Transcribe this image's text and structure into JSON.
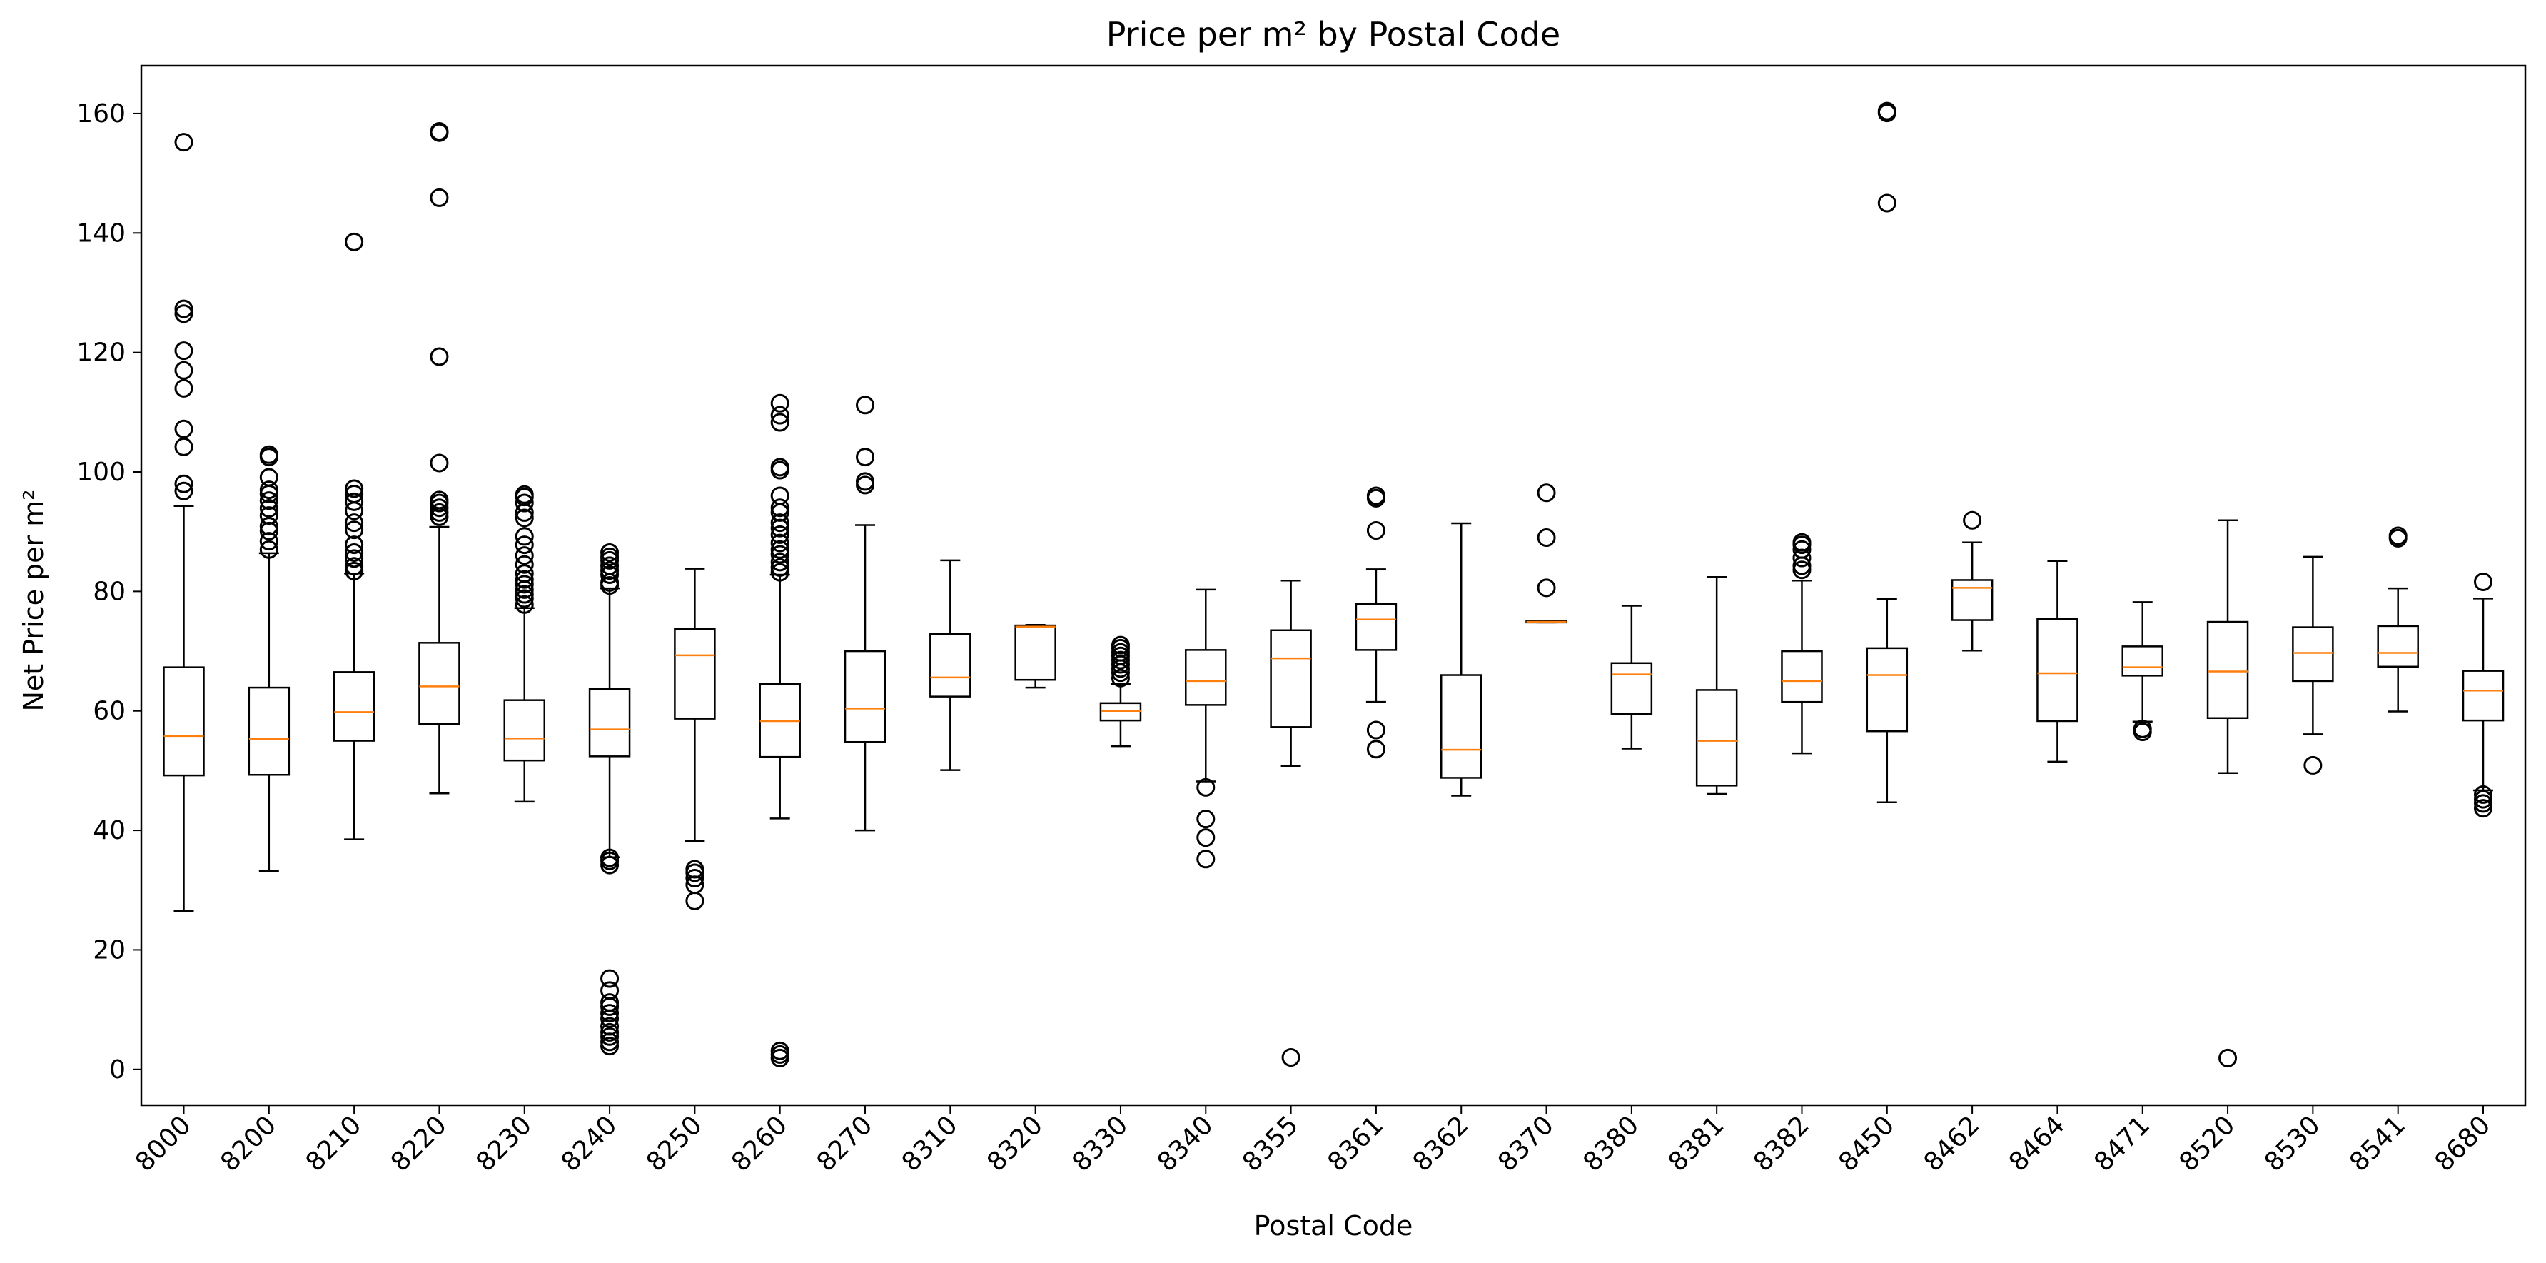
{
  "chart_data": {
    "type": "box",
    "title": "Price per m² by Postal Code",
    "xlabel": "Postal Code",
    "ylabel": "Net Price per m²",
    "ylim": [
      -6,
      168
    ],
    "yticks": [
      0,
      20,
      40,
      60,
      80,
      100,
      120,
      140,
      160
    ],
    "grid": false,
    "colors": {
      "box": "#000000",
      "median": "#ff7f0e"
    },
    "categories": [
      "8000",
      "8200",
      "8210",
      "8220",
      "8230",
      "8240",
      "8250",
      "8260",
      "8270",
      "8310",
      "8320",
      "8330",
      "8340",
      "8355",
      "8361",
      "8362",
      "8370",
      "8380",
      "8381",
      "8382",
      "8450",
      "8462",
      "8464",
      "8471",
      "8520",
      "8530",
      "8541",
      "8680"
    ],
    "boxes": [
      {
        "whisker_low": 26.5,
        "q1": 49.2,
        "median": 55.8,
        "q3": 67.3,
        "whisker_high": 94.3,
        "outliers": [
          96.8,
          98.0,
          104.2,
          107.2,
          114.0,
          117.0,
          120.3,
          126.5,
          127.3,
          155.2
        ]
      },
      {
        "whisker_low": 33.2,
        "q1": 49.3,
        "median": 55.3,
        "q3": 63.9,
        "whisker_high": 86.4,
        "outliers": [
          87.0,
          88.4,
          90.1,
          90.9,
          92.7,
          93.9,
          95.2,
          96.3,
          97.0,
          99.1,
          102.5,
          102.9
        ]
      },
      {
        "whisker_low": 38.5,
        "q1": 55.0,
        "median": 59.8,
        "q3": 66.5,
        "whisker_high": 83.0,
        "outliers": [
          83.4,
          84.2,
          85.5,
          86.5,
          87.8,
          90.3,
          91.5,
          93.5,
          95.0,
          96.3,
          97.2,
          138.5
        ]
      },
      {
        "whisker_low": 46.2,
        "q1": 57.8,
        "median": 64.1,
        "q3": 71.4,
        "whisker_high": 90.8,
        "outliers": [
          92.5,
          93.2,
          94.0,
          94.8,
          95.3,
          101.5,
          119.3,
          145.9,
          156.8,
          157.0
        ]
      },
      {
        "whisker_low": 44.8,
        "q1": 51.7,
        "median": 55.4,
        "q3": 61.8,
        "whisker_high": 77.2,
        "outliers": [
          77.8,
          78.8,
          79.5,
          80.3,
          81.2,
          82.0,
          83.0,
          84.5,
          86.0,
          87.8,
          89.2,
          92.3,
          93.2,
          94.8,
          95.8,
          96.2
        ]
      },
      {
        "whisker_low": 35.5,
        "q1": 52.4,
        "median": 56.9,
        "q3": 63.7,
        "whisker_high": 80.5,
        "outliers": [
          3.9,
          4.6,
          5.5,
          6.2,
          7.2,
          8.5,
          9.4,
          10.5,
          11.2,
          13.2,
          15.2,
          34.2,
          34.9,
          35.4,
          81.0,
          81.5,
          82.8,
          83.5,
          84.3,
          85.2,
          85.8,
          86.5
        ]
      },
      {
        "whisker_low": 38.2,
        "q1": 58.7,
        "median": 69.3,
        "q3": 73.7,
        "whisker_high": 83.8,
        "outliers": [
          28.2,
          30.9,
          32.0,
          32.9,
          33.5
        ]
      },
      {
        "whisker_low": 42.0,
        "q1": 52.3,
        "median": 58.3,
        "q3": 64.5,
        "whisker_high": 82.8,
        "outliers": [
          1.9,
          2.5,
          3.1,
          83.2,
          84.0,
          84.9,
          86.2,
          87.0,
          88.1,
          89.5,
          90.6,
          91.5,
          93.2,
          94.0,
          96.0,
          100.3,
          100.8,
          108.3,
          109.5,
          111.5
        ]
      },
      {
        "whisker_low": 40.0,
        "q1": 54.8,
        "median": 60.4,
        "q3": 70.0,
        "whisker_high": 91.1,
        "outliers": [
          97.8,
          98.4,
          102.5,
          111.2
        ]
      },
      {
        "whisker_low": 50.1,
        "q1": 62.4,
        "median": 65.6,
        "q3": 72.9,
        "whisker_high": 85.2,
        "outliers": []
      },
      {
        "whisker_low": 63.9,
        "q1": 65.2,
        "median": 74.1,
        "q3": 74.3,
        "whisker_high": 74.4,
        "outliers": []
      },
      {
        "whisker_low": 54.1,
        "q1": 58.4,
        "median": 60.0,
        "q3": 61.3,
        "whisker_high": 64.5,
        "outliers": [
          65.5,
          66.4,
          67.1,
          67.8,
          68.5,
          69.2,
          69.8,
          70.5,
          71.0
        ]
      },
      {
        "whisker_low": 48.2,
        "q1": 61.0,
        "median": 65.0,
        "q3": 70.2,
        "whisker_high": 80.3,
        "outliers": [
          35.2,
          38.8,
          41.9,
          47.2
        ]
      },
      {
        "whisker_low": 50.8,
        "q1": 57.3,
        "median": 68.8,
        "q3": 73.5,
        "whisker_high": 81.8,
        "outliers": [
          2.0
        ]
      },
      {
        "whisker_low": 61.5,
        "q1": 70.2,
        "median": 75.3,
        "q3": 77.9,
        "whisker_high": 83.7,
        "outliers": [
          53.6,
          56.8,
          90.2,
          95.6,
          96.0
        ]
      },
      {
        "whisker_low": 45.8,
        "q1": 48.8,
        "median": 53.5,
        "q3": 66.0,
        "whisker_high": 91.4,
        "outliers": []
      },
      {
        "whisker_low": 74.8,
        "q1": 74.8,
        "median": 74.9,
        "q3": 75.0,
        "whisker_high": 75.0,
        "outliers": [
          80.6,
          89.0,
          96.5
        ]
      },
      {
        "whisker_low": 53.7,
        "q1": 59.5,
        "median": 66.1,
        "q3": 68.0,
        "whisker_high": 77.6,
        "outliers": []
      },
      {
        "whisker_low": 46.1,
        "q1": 47.5,
        "median": 55.0,
        "q3": 63.5,
        "whisker_high": 82.4,
        "outliers": []
      },
      {
        "whisker_low": 52.9,
        "q1": 61.5,
        "median": 65.0,
        "q3": 70.0,
        "whisker_high": 81.8,
        "outliers": [
          83.6,
          84.3,
          85.6,
          87.0,
          87.8,
          88.2
        ]
      },
      {
        "whisker_low": 44.7,
        "q1": 56.6,
        "median": 66.0,
        "q3": 70.5,
        "whisker_high": 78.7,
        "outliers": [
          145.0,
          160.1,
          160.4
        ]
      },
      {
        "whisker_low": 70.1,
        "q1": 75.2,
        "median": 80.6,
        "q3": 81.9,
        "whisker_high": 88.2,
        "outliers": [
          91.9
        ]
      },
      {
        "whisker_low": 51.5,
        "q1": 58.3,
        "median": 66.3,
        "q3": 75.4,
        "whisker_high": 85.1,
        "outliers": []
      },
      {
        "whisker_low": 58.2,
        "q1": 65.9,
        "median": 67.3,
        "q3": 70.8,
        "whisker_high": 78.2,
        "outliers": [
          56.5,
          57.0
        ]
      },
      {
        "whisker_low": 49.6,
        "q1": 58.8,
        "median": 66.6,
        "q3": 74.9,
        "whisker_high": 91.9,
        "outliers": [
          1.9
        ]
      },
      {
        "whisker_low": 56.1,
        "q1": 65.0,
        "median": 69.7,
        "q3": 74.0,
        "whisker_high": 85.8,
        "outliers": [
          50.9
        ]
      },
      {
        "whisker_low": 59.9,
        "q1": 67.4,
        "median": 69.7,
        "q3": 74.2,
        "whisker_high": 80.5,
        "outliers": [
          88.9,
          89.3
        ]
      },
      {
        "whisker_low": 46.7,
        "q1": 58.4,
        "median": 63.4,
        "q3": 66.7,
        "whisker_high": 78.8,
        "outliers": [
          43.7,
          44.5,
          45.2,
          46.0,
          81.6
        ]
      }
    ]
  }
}
